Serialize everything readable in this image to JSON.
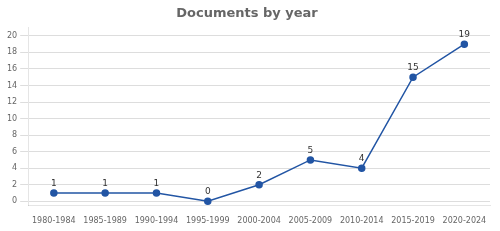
{
  "chart_data": {
    "type": "line",
    "title": "Documents by year",
    "categories": [
      "1980-1984",
      "1985-1989",
      "1990-1994",
      "1995-1999",
      "2000-2004",
      "2005-2009",
      "2010-2014",
      "2015-2019",
      "2020-2024"
    ],
    "values": [
      1,
      1,
      1,
      0,
      2,
      5,
      4,
      15,
      19
    ],
    "color": "#2255a4",
    "marker": "circle",
    "ylim": [
      -0.5,
      21
    ],
    "yticks": [
      0,
      2,
      4,
      6,
      8,
      10,
      12,
      14,
      16,
      18,
      20
    ],
    "grid": true,
    "data_labels": true
  }
}
